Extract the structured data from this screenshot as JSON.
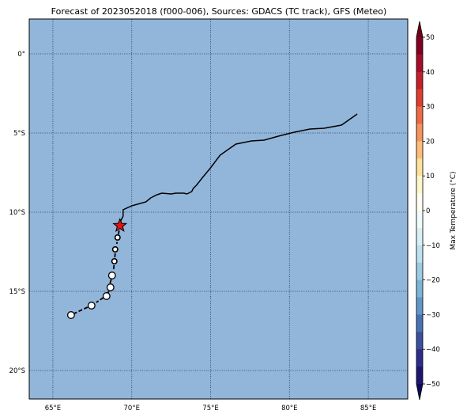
{
  "title": "Forecast of 2023052018 (f000-006), Sources: GDACS (TC track), GFS (Meteo)",
  "colors": {
    "ocean": "#92b5da",
    "grid": "#2f3f66",
    "track": "#000000",
    "storm_marker": "#e11414"
  },
  "map": {
    "lon_range": [
      63.5,
      87.5
    ],
    "lat_range": [
      -21.8,
      2.2
    ],
    "lon_ticks": [
      {
        "value": 65,
        "label": "65°E"
      },
      {
        "value": 70,
        "label": "70°E"
      },
      {
        "value": 75,
        "label": "75°E"
      },
      {
        "value": 80,
        "label": "80°E"
      },
      {
        "value": 85,
        "label": "85°E"
      }
    ],
    "lat_ticks": [
      {
        "value": 0,
        "label": "0°"
      },
      {
        "value": -5,
        "label": "5°S"
      },
      {
        "value": -10,
        "label": "10°S"
      },
      {
        "value": -15,
        "label": "15°S"
      },
      {
        "value": -20,
        "label": "20°S"
      }
    ],
    "grid": true
  },
  "coastline": [
    [
      84.3,
      -3.8
    ],
    [
      83.3,
      -4.5
    ],
    [
      82.2,
      -4.7
    ],
    [
      81.3,
      -4.75
    ],
    [
      80.3,
      -4.95
    ],
    [
      79.3,
      -5.2
    ],
    [
      78.4,
      -5.45
    ],
    [
      77.6,
      -5.5
    ],
    [
      76.6,
      -5.7
    ],
    [
      75.6,
      -6.4
    ],
    [
      75.0,
      -7.2
    ],
    [
      74.5,
      -7.8
    ],
    [
      74.1,
      -8.3
    ],
    [
      73.9,
      -8.5
    ],
    [
      73.8,
      -8.7
    ],
    [
      73.5,
      -8.85
    ],
    [
      73.3,
      -8.8
    ],
    [
      72.8,
      -8.8
    ],
    [
      72.5,
      -8.85
    ],
    [
      71.9,
      -8.8
    ],
    [
      71.6,
      -8.9
    ],
    [
      71.2,
      -9.1
    ],
    [
      70.9,
      -9.35
    ],
    [
      70.0,
      -9.6
    ],
    [
      69.45,
      -9.85
    ],
    [
      69.45,
      -10.25
    ],
    [
      69.3,
      -10.55
    ],
    [
      69.25,
      -10.85
    ]
  ],
  "track": {
    "storm_position": [
      69.25,
      -10.85
    ],
    "points": [
      [
        69.1,
        -11.6
      ],
      [
        68.95,
        -12.35
      ],
      [
        68.9,
        -13.1
      ],
      [
        68.75,
        -14.0
      ],
      [
        68.65,
        -14.75
      ],
      [
        68.4,
        -15.3
      ],
      [
        67.45,
        -15.9
      ],
      [
        66.15,
        -16.5
      ]
    ],
    "segments": [
      [
        [
          69.2,
          -11.15
        ],
        [
          69.05,
          -12.0
        ]
      ],
      [
        [
          68.95,
          -12.6
        ],
        [
          68.85,
          -13.6
        ]
      ],
      [
        [
          68.7,
          -14.25
        ],
        [
          68.6,
          -14.55
        ]
      ],
      [
        [
          68.55,
          -15.0
        ],
        [
          68.45,
          -15.15
        ]
      ],
      [
        [
          68.2,
          -15.4
        ],
        [
          67.75,
          -15.7
        ]
      ],
      [
        [
          67.2,
          -16.0
        ],
        [
          66.35,
          -16.4
        ]
      ]
    ]
  },
  "colorbar": {
    "label": "Max Temperature (°C)",
    "range": [
      -55,
      55
    ],
    "ticks": [
      {
        "value": 50,
        "label": "50"
      },
      {
        "value": 40,
        "label": "40"
      },
      {
        "value": 30,
        "label": "30"
      },
      {
        "value": 20,
        "label": "20"
      },
      {
        "value": 10,
        "label": "10"
      },
      {
        "value": 0,
        "label": "0"
      },
      {
        "value": -10,
        "label": "−10"
      },
      {
        "value": -20,
        "label": "−20"
      },
      {
        "value": -30,
        "label": "−30"
      },
      {
        "value": -40,
        "label": "−40"
      },
      {
        "value": -50,
        "label": "−50"
      }
    ],
    "bands": [
      {
        "from": 45,
        "to": 50,
        "color": "#800020"
      },
      {
        "from": 40,
        "to": 45,
        "color": "#a50d2a"
      },
      {
        "from": 35,
        "to": 40,
        "color": "#c52028"
      },
      {
        "from": 30,
        "to": 35,
        "color": "#dd3e2f"
      },
      {
        "from": 25,
        "to": 30,
        "color": "#ee6a45"
      },
      {
        "from": 20,
        "to": 25,
        "color": "#f7935d"
      },
      {
        "from": 15,
        "to": 20,
        "color": "#fcbd78"
      },
      {
        "from": 10,
        "to": 15,
        "color": "#fee29c"
      },
      {
        "from": 5,
        "to": 10,
        "color": "#fff7c8"
      },
      {
        "from": 0,
        "to": 5,
        "color": "#fffdf0"
      },
      {
        "from": -5,
        "to": 0,
        "color": "#f0fbfc"
      },
      {
        "from": -10,
        "to": -5,
        "color": "#d9f0f6"
      },
      {
        "from": -15,
        "to": -10,
        "color": "#bde1ef"
      },
      {
        "from": -20,
        "to": -15,
        "color": "#9ccbe3"
      },
      {
        "from": -25,
        "to": -20,
        "color": "#7eb4d6"
      },
      {
        "from": -30,
        "to": -25,
        "color": "#6296c8"
      },
      {
        "from": -35,
        "to": -30,
        "color": "#4873b3"
      },
      {
        "from": -40,
        "to": -35,
        "color": "#3a4f9d"
      },
      {
        "from": -45,
        "to": -40,
        "color": "#2e2c8b"
      },
      {
        "from": -50,
        "to": -45,
        "color": "#1e1570"
      }
    ],
    "top_color": "#6e0018",
    "bottom_color": "#10085a"
  }
}
